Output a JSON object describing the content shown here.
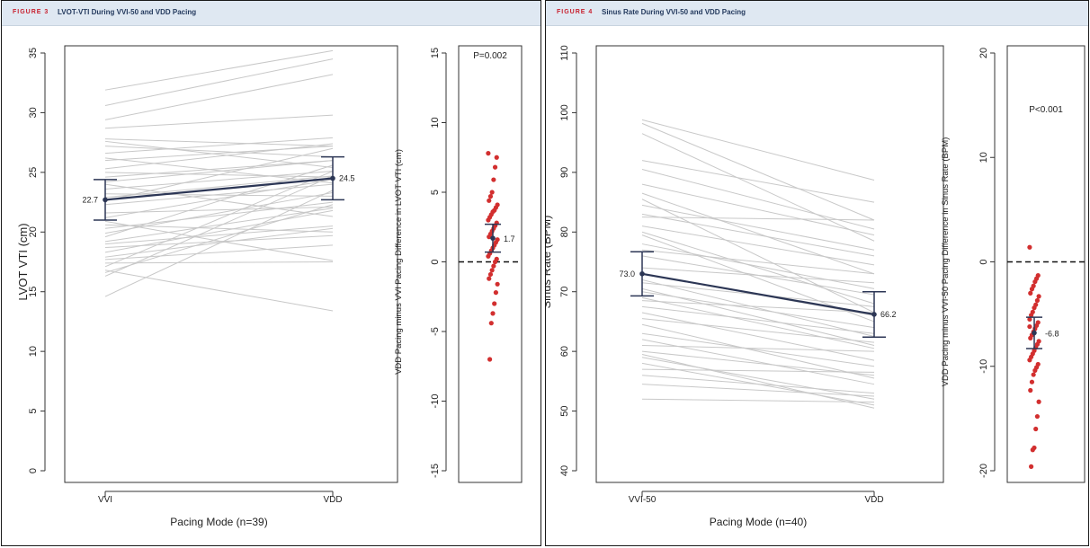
{
  "colors": {
    "header_bg": "#dfe8f2",
    "fig_label": "#c8202e",
    "title": "#243a5e",
    "mean_line": "#2c3655",
    "spaghetti": "#c8c8c8",
    "dot": "#d22f2f"
  },
  "chart_data": [
    {
      "type": "line",
      "figure_label": "FIGURE 3",
      "title": "LVOT-VTI During VVI-50 and VDD Pacing",
      "main": {
        "categories": [
          "VVI",
          "VDD"
        ],
        "xlabel": "Pacing Mode (n=39)",
        "ylabel": "LVOT VTI (cm)",
        "ylim": [
          0,
          35
        ],
        "yticks": [
          "0",
          "5",
          "10",
          "15",
          "20",
          "25",
          "30",
          "35"
        ],
        "pairs": [
          [
            31.9,
            35.2
          ],
          [
            30.6,
            34.5
          ],
          [
            29.4,
            33.2
          ],
          [
            28.7,
            29.8
          ],
          [
            27.8,
            27.2
          ],
          [
            27.6,
            25.4
          ],
          [
            27.2,
            26.3
          ],
          [
            26.6,
            27.9
          ],
          [
            26.2,
            24.1
          ],
          [
            26.0,
            27.2
          ],
          [
            25.3,
            27.4
          ],
          [
            25.0,
            24.6
          ],
          [
            24.6,
            26.0
          ],
          [
            24.2,
            26.0
          ],
          [
            24.0,
            21.3
          ],
          [
            23.6,
            25.1
          ],
          [
            23.2,
            23.0
          ],
          [
            22.9,
            24.7
          ],
          [
            22.6,
            27.0
          ],
          [
            22.3,
            24.0
          ],
          [
            21.6,
            22.1
          ],
          [
            21.2,
            24.4
          ],
          [
            20.9,
            17.6
          ],
          [
            20.6,
            20.0
          ],
          [
            20.3,
            22.5
          ],
          [
            19.9,
            23.3
          ],
          [
            19.6,
            25.6
          ],
          [
            19.2,
            22.0
          ],
          [
            19.0,
            20.5
          ],
          [
            18.7,
            19.7
          ],
          [
            18.3,
            21.8
          ],
          [
            17.9,
            20.3
          ],
          [
            17.7,
            18.9
          ],
          [
            17.4,
            17.5
          ],
          [
            17.1,
            25.1
          ],
          [
            16.8,
            13.4
          ],
          [
            16.6,
            22.3
          ],
          [
            16.3,
            24.7
          ],
          [
            14.6,
            23.5
          ]
        ],
        "mean": [
          22.7,
          24.5
        ],
        "mean_labels": [
          "22.7",
          "24.5"
        ],
        "ci": [
          [
            21.0,
            24.4
          ],
          [
            22.7,
            26.3
          ]
        ]
      },
      "diff": {
        "ylabel": "VDD Pacing minus VVI Pacing Difference in LVOT VTI (cm)",
        "ylim": [
          -15,
          15
        ],
        "yticks": [
          "-15",
          "-10",
          "-5",
          "0",
          "5",
          "10",
          "15"
        ],
        "pvalue": "P=0.002",
        "mean": 1.7,
        "mean_label": "1.7",
        "ci": [
          0.7,
          2.7
        ],
        "values": [
          7.8,
          7.5,
          6.8,
          5.9,
          5.0,
          4.7,
          4.4,
          4.1,
          3.9,
          3.7,
          3.6,
          3.4,
          3.2,
          3.0,
          2.8,
          2.6,
          2.4,
          2.2,
          2.0,
          1.8,
          1.6,
          1.4,
          1.2,
          1.0,
          0.8,
          0.6,
          0.4,
          0.2,
          0.0,
          -0.3,
          -0.6,
          -0.9,
          -1.2,
          -1.6,
          -2.2,
          -3.0,
          -3.7,
          -4.4,
          -7.0
        ]
      }
    },
    {
      "type": "line",
      "figure_label": "FIGURE 4",
      "title": "Sinus Rate During VVI-50 and VDD Pacing",
      "main": {
        "categories": [
          "VVI-50",
          "VDD"
        ],
        "xlabel": "Pacing Mode (n=40)",
        "ylabel": "Sinus Rate (BPM)",
        "ylim": [
          40,
          110
        ],
        "yticks": [
          "40",
          "50",
          "60",
          "70",
          "80",
          "90",
          "100",
          "110"
        ],
        "pairs": [
          [
            98.8,
            88.7
          ],
          [
            98.2,
            82.0
          ],
          [
            96.5,
            78.5
          ],
          [
            92.0,
            85.0
          ],
          [
            90.5,
            80.5
          ],
          [
            88.0,
            79.5
          ],
          [
            86.5,
            73.0
          ],
          [
            85.5,
            66.5
          ],
          [
            84.5,
            77.0
          ],
          [
            83.0,
            76.0
          ],
          [
            82.5,
            82.0
          ],
          [
            81.0,
            74.5
          ],
          [
            80.0,
            68.0
          ],
          [
            79.5,
            65.0
          ],
          [
            78.0,
            70.5
          ],
          [
            77.0,
            73.0
          ],
          [
            76.0,
            69.5
          ],
          [
            74.0,
            71.5
          ],
          [
            73.0,
            66.0
          ],
          [
            72.0,
            62.5
          ],
          [
            71.5,
            67.5
          ],
          [
            70.5,
            61.0
          ],
          [
            70.0,
            64.0
          ],
          [
            69.0,
            60.5
          ],
          [
            68.5,
            66.5
          ],
          [
            67.5,
            63.0
          ],
          [
            66.5,
            58.5
          ],
          [
            65.5,
            61.5
          ],
          [
            64.5,
            55.5
          ],
          [
            63.0,
            57.5
          ],
          [
            62.0,
            54.5
          ],
          [
            61.0,
            60.0
          ],
          [
            60.0,
            56.0
          ],
          [
            59.0,
            52.0
          ],
          [
            58.0,
            51.0
          ],
          [
            57.0,
            56.5
          ],
          [
            56.0,
            53.0
          ],
          [
            54.5,
            52.5
          ],
          [
            52.0,
            51.5
          ],
          [
            59.5,
            50.5
          ]
        ],
        "mean": [
          73.0,
          66.2
        ],
        "mean_labels": [
          "73.0",
          "66.2"
        ],
        "ci": [
          [
            69.3,
            76.7
          ],
          [
            62.4,
            70.0
          ]
        ]
      },
      "diff": {
        "ylabel": "VDD Pacing minus VVI-50 Pacing Difference in Sinus Rate (BPM)",
        "ylim": [
          -20,
          20
        ],
        "yticks": [
          "-20",
          "-10",
          "0",
          "10",
          "20"
        ],
        "pvalue": "P<0.001",
        "mean": -6.8,
        "mean_label": "-6.8",
        "ci": [
          -8.3,
          -5.3
        ],
        "values": [
          1.4,
          -1.3,
          -1.6,
          -1.9,
          -2.3,
          -2.6,
          -3.0,
          -3.3,
          -3.7,
          -4.1,
          -4.4,
          -4.8,
          -5.1,
          -5.5,
          -5.8,
          -6.1,
          -6.4,
          -6.7,
          -7.0,
          -7.3,
          -7.6,
          -7.9,
          -8.2,
          -8.5,
          -8.8,
          -9.1,
          -9.4,
          -9.8,
          -10.1,
          -10.4,
          -10.8,
          -11.5,
          -12.3,
          -13.4,
          -14.8,
          -16.0,
          -17.8,
          -18.0,
          -19.6,
          -6.2
        ]
      }
    }
  ]
}
